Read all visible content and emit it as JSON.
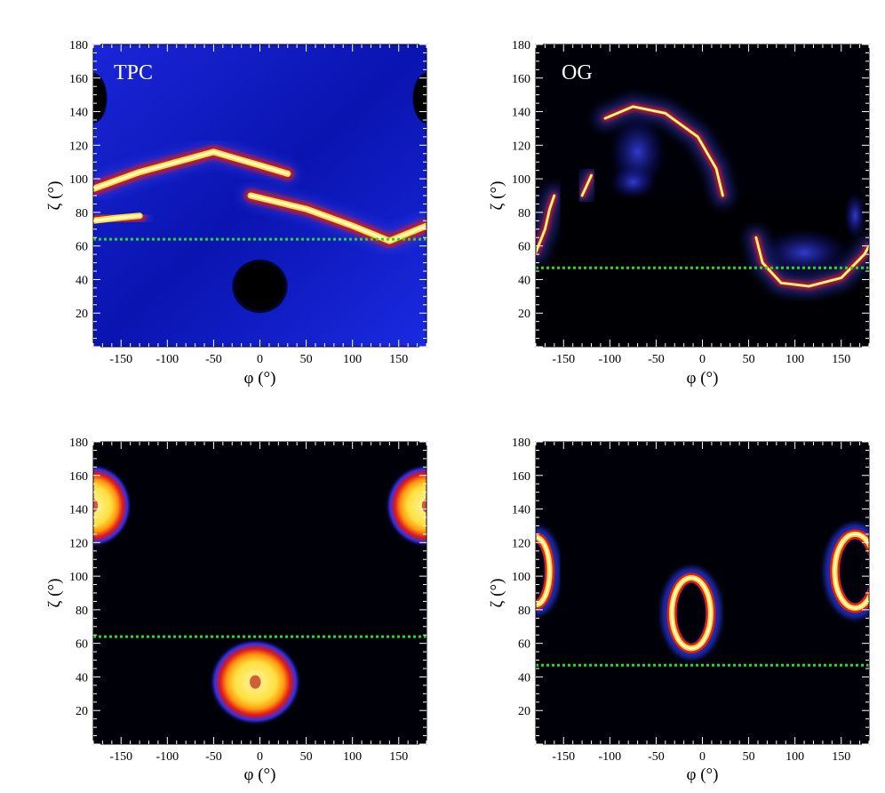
{
  "chart_data": [
    {
      "type": "heatmap",
      "title": "TPC",
      "xlabel": "φ (°)",
      "ylabel": "ζ (°)",
      "xlim": [
        -180,
        180
      ],
      "ylim": [
        0,
        180
      ],
      "xticks": [
        -150,
        -100,
        -50,
        0,
        50,
        100,
        150
      ],
      "yticks": [
        20,
        40,
        60,
        80,
        100,
        120,
        140,
        160,
        180
      ],
      "background": "blue",
      "reference_line": {
        "zeta": 64,
        "color": "#22dd22",
        "style": "dotted"
      },
      "features": [
        {
          "kind": "caustic",
          "points": [
            [
              -180,
              94
            ],
            [
              -130,
              104
            ],
            [
              -50,
              116
            ],
            [
              0,
              108
            ],
            [
              30,
              103
            ]
          ]
        },
        {
          "kind": "caustic",
          "points": [
            [
              -180,
              75
            ],
            [
              -150,
              77
            ],
            [
              -130,
              78
            ]
          ]
        },
        {
          "kind": "caustic",
          "points": [
            [
              -10,
              90
            ],
            [
              50,
              82
            ],
            [
              100,
              72
            ],
            [
              140,
              63
            ],
            [
              180,
              72
            ]
          ]
        },
        {
          "kind": "faint-band",
          "points": [
            [
              30,
              102
            ],
            [
              60,
              102
            ],
            [
              90,
              102
            ]
          ]
        },
        {
          "kind": "faint-band",
          "points": [
            [
              160,
              92
            ],
            [
              180,
              92
            ]
          ]
        },
        {
          "kind": "null-region",
          "center": [
            0,
            36
          ],
          "radius": [
            30,
            16
          ]
        },
        {
          "kind": "null-region",
          "center": [
            -180,
            148
          ],
          "radius": [
            15,
            15
          ]
        },
        {
          "kind": "null-region",
          "center": [
            180,
            148
          ],
          "radius": [
            15,
            15
          ]
        }
      ]
    },
    {
      "type": "heatmap",
      "title": "OG",
      "xlabel": "φ (°)",
      "ylabel": "ζ (°)",
      "xlim": [
        -180,
        180
      ],
      "ylim": [
        0,
        180
      ],
      "xticks": [
        -150,
        -100,
        -50,
        0,
        50,
        100,
        150
      ],
      "yticks": [
        20,
        40,
        60,
        80,
        100,
        120,
        140,
        160,
        180
      ],
      "background": "black",
      "reference_line": {
        "zeta": 47,
        "color": "#22dd22",
        "style": "dotted"
      },
      "features": [
        {
          "kind": "caustic",
          "points": [
            [
              -105,
              136
            ],
            [
              -75,
              143
            ],
            [
              -40,
              139
            ],
            [
              -5,
              125
            ],
            [
              15,
              106
            ],
            [
              22,
              90
            ]
          ]
        },
        {
          "kind": "caustic",
          "points": [
            [
              -130,
              90
            ],
            [
              -125,
              96
            ],
            [
              -120,
              102
            ]
          ]
        },
        {
          "kind": "caustic",
          "points": [
            [
              -180,
              56
            ],
            [
              -170,
              70
            ],
            [
              -165,
              82
            ],
            [
              -160,
              90
            ]
          ]
        },
        {
          "kind": "caustic",
          "points": [
            [
              58,
              65
            ],
            [
              65,
              50
            ],
            [
              85,
              38
            ],
            [
              115,
              36
            ],
            [
              150,
              41
            ],
            [
              175,
              55
            ],
            [
              180,
              60
            ]
          ]
        },
        {
          "kind": "glow",
          "center": [
            -70,
            116
          ],
          "radius": [
            30,
            22
          ]
        },
        {
          "kind": "glow",
          "center": [
            -75,
            98
          ],
          "radius": [
            25,
            10
          ]
        },
        {
          "kind": "glow",
          "center": [
            110,
            56
          ],
          "radius": [
            48,
            14
          ]
        },
        {
          "kind": "glow",
          "center": [
            165,
            78
          ],
          "radius": [
            12,
            14
          ]
        }
      ]
    },
    {
      "type": "heatmap",
      "title": "",
      "xlabel": "φ (°)",
      "ylabel": "ζ (°)",
      "xlim": [
        -180,
        180
      ],
      "ylim": [
        0,
        180
      ],
      "xticks": [
        -150,
        -100,
        -50,
        0,
        50,
        100,
        150
      ],
      "yticks": [
        20,
        40,
        60,
        80,
        100,
        120,
        140,
        160,
        180
      ],
      "background": "black",
      "reference_line": {
        "zeta": 64,
        "color": "#22dd22",
        "style": "dotted"
      },
      "features": [
        {
          "kind": "spot",
          "center": [
            -5,
            37
          ],
          "radius": [
            50,
            26
          ],
          "hole": [
            6,
            4
          ]
        },
        {
          "kind": "spot",
          "center": [
            -180,
            142
          ],
          "radius": [
            42,
            25
          ],
          "hole": [
            5,
            4
          ]
        },
        {
          "kind": "spot",
          "center": [
            180,
            142
          ],
          "radius": [
            45,
            25
          ],
          "hole": [
            5,
            4
          ]
        }
      ]
    },
    {
      "type": "heatmap",
      "title": "",
      "xlabel": "φ (°)",
      "ylabel": "ζ (°)",
      "xlim": [
        -180,
        180
      ],
      "ylim": [
        0,
        180
      ],
      "xticks": [
        -150,
        -100,
        -50,
        0,
        50,
        100,
        150
      ],
      "yticks": [
        20,
        40,
        60,
        80,
        100,
        120,
        140,
        160,
        180
      ],
      "background": "black",
      "reference_line": {
        "zeta": 47,
        "color": "#22dd22",
        "style": "dotted"
      },
      "features": [
        {
          "kind": "ring",
          "center": [
            -12,
            78
          ],
          "radius": [
            21,
            21
          ]
        },
        {
          "kind": "ring",
          "center": [
            -180,
            103
          ],
          "radius": [
            15,
            20
          ]
        },
        {
          "kind": "ring",
          "center": [
            165,
            103
          ],
          "radius": [
            22,
            22
          ]
        }
      ]
    }
  ]
}
